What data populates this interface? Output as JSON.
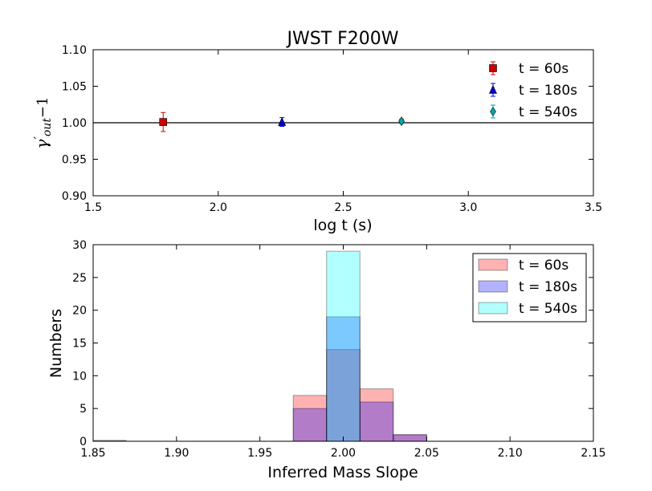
{
  "chart_data": [
    {
      "type": "scatter",
      "title": "JWST F200W",
      "xlabel": "log t (s)",
      "ylabel_main": "γ",
      "ylabel_prime": "′",
      "ylabel_sub": "out",
      "ylabel_suffix": "−1",
      "xlim": [
        1.5,
        3.5
      ],
      "ylim": [
        0.9,
        1.1
      ],
      "xticks": [
        "1.5",
        "2.0",
        "2.5",
        "3.0",
        "3.5"
      ],
      "yticks": [
        "0.90",
        "0.95",
        "1.00",
        "1.05",
        "1.10"
      ],
      "reference_line": 1.0,
      "series": [
        {
          "name": "t = 60s",
          "x": 1.78,
          "y": 1.001,
          "yerr": 0.013,
          "color": "#cc0000",
          "marker": "square"
        },
        {
          "name": "t = 180s",
          "x": 2.255,
          "y": 1.001,
          "yerr": 0.006,
          "color": "#0000cc",
          "marker": "triangle"
        },
        {
          "name": "t = 540s",
          "x": 2.733,
          "y": 1.002,
          "yerr": 0.003,
          "color": "#00a8a8",
          "marker": "diamond"
        }
      ],
      "legend": [
        "t = 60s",
        "t = 180s",
        "t = 540s"
      ],
      "legend_position": "top-right"
    },
    {
      "type": "bar",
      "subtype": "histogram",
      "xlabel": "Inferred Mass Slope",
      "ylabel": "Numbers",
      "xlim": [
        1.85,
        2.15
      ],
      "ylim": [
        0,
        30
      ],
      "xticks": [
        "1.85",
        "1.90",
        "1.95",
        "2.00",
        "2.05",
        "2.10",
        "2.15"
      ],
      "yticks": [
        "0",
        "5",
        "10",
        "15",
        "20",
        "25",
        "30"
      ],
      "bin_edges": [
        1.97,
        1.99,
        2.01,
        2.03,
        2.05
      ],
      "series": [
        {
          "name": "t = 60s",
          "values": [
            7,
            14,
            8,
            1
          ],
          "color": "#ff0000",
          "alpha": 0.3
        },
        {
          "name": "t = 180s",
          "values": [
            5,
            19,
            6,
            1
          ],
          "color": "#0000ff",
          "alpha": 0.3
        },
        {
          "name": "t = 540s",
          "values": [
            0,
            29,
            0,
            0
          ],
          "color": "#00ffff",
          "alpha": 0.3
        }
      ],
      "legend": [
        "t = 60s",
        "t = 180s",
        "t = 540s"
      ],
      "legend_position": "top-right"
    }
  ]
}
